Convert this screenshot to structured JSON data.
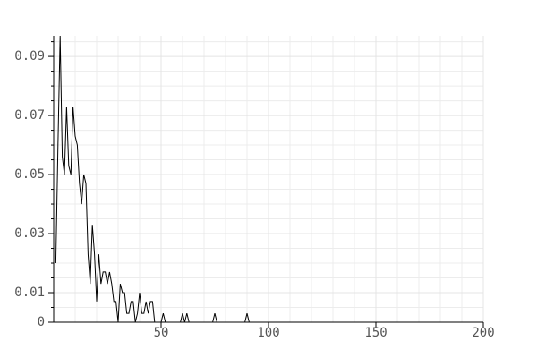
{
  "chart_data": {
    "type": "line",
    "color": "#000000",
    "grid": true,
    "x": [
      1,
      2,
      3,
      4,
      5,
      6,
      7,
      8,
      9,
      10,
      11,
      12,
      13,
      14,
      15,
      16,
      17,
      18,
      19,
      20,
      21,
      22,
      23,
      24,
      25,
      26,
      27,
      28,
      29,
      30,
      31,
      32,
      33,
      34,
      35,
      36,
      37,
      38,
      39,
      40,
      41,
      42,
      43,
      44,
      45,
      46,
      47,
      48,
      49,
      50,
      51,
      52,
      59,
      60,
      61,
      62,
      63,
      74,
      75,
      76,
      89,
      90,
      91,
      200
    ],
    "series": [
      {
        "color": "#000000",
        "values": [
          0.02,
          0.06,
          0.097,
          0.056,
          0.05,
          0.073,
          0.053,
          0.05,
          0.073,
          0.063,
          0.06,
          0.047,
          0.04,
          0.05,
          0.047,
          0.023,
          0.013,
          0.033,
          0.023,
          0.007,
          0.023,
          0.013,
          0.017,
          0.017,
          0.013,
          0.017,
          0.013,
          0.007,
          0.007,
          0,
          0.013,
          0.01,
          0.01,
          0.003,
          0.003,
          0.007,
          0.007,
          0,
          0.003,
          0.01,
          0.003,
          0.003,
          0.007,
          0.003,
          0.007,
          0.007,
          0,
          0,
          0,
          0,
          0.003,
          0,
          0,
          0.003,
          0,
          0.003,
          0,
          0,
          0.003,
          0,
          0,
          0.003,
          0,
          0
        ]
      }
    ],
    "xlim": [
      0,
      200
    ],
    "xticks": [
      50,
      100,
      150,
      200
    ],
    "x_minor_ticks": [
      10,
      20,
      30,
      40,
      60,
      70,
      80,
      90,
      110,
      120,
      130,
      140,
      160,
      170,
      180,
      190
    ],
    "ylim": [
      0,
      0.097
    ],
    "yticks": [
      0,
      0.01,
      0.03,
      0.05,
      0.07,
      0.09
    ],
    "y_minor_ticks": [
      0.005,
      0.015,
      0.02,
      0.025,
      0.035,
      0.04,
      0.045,
      0.055,
      0.06,
      0.065,
      0.075,
      0.08,
      0.085,
      0.095
    ]
  }
}
